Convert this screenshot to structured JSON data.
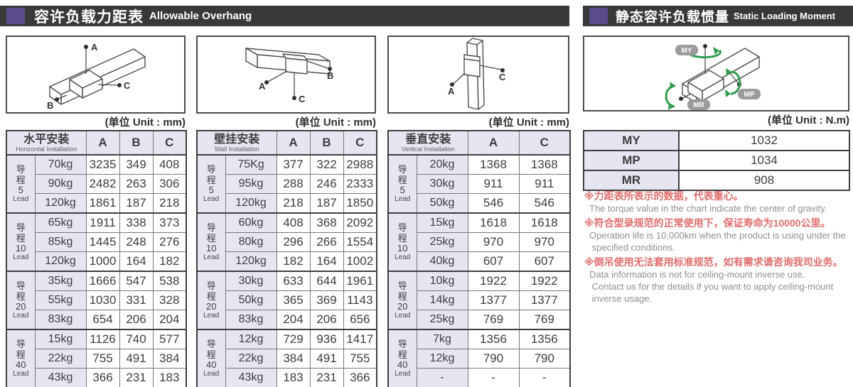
{
  "page": {
    "unit_mm": "(单位 Unit : mm)",
    "unit_nm": "(单位 Unit : N.m)"
  },
  "colors": {
    "accent_purple": "#5b4b8a",
    "bar_dark": "#3a3939",
    "cell_lavender": "#e6e6f2",
    "note_red": "#e06c6c",
    "note_gray": "#8f8f8f",
    "arrow_green": "#2f9e4e",
    "pill_gray": "#9b9b9b"
  },
  "left_section": {
    "title_zh": "容许负载力距表",
    "title_en": "Allowable Overhang",
    "tables": [
      {
        "name_zh": "水平安装",
        "name_en": "Horizontal Installation",
        "columns": [
          "A",
          "B",
          "C"
        ],
        "diagram_points": [
          "A",
          "B",
          "C"
        ],
        "groups": [
          {
            "lead": {
              "zh": "导程",
              "value": "5",
              "en": "Lead"
            },
            "rows": [
              [
                "70kg",
                "3235",
                "349",
                "408"
              ],
              [
                "90kg",
                "2482",
                "263",
                "306"
              ],
              [
                "120kg",
                "1861",
                "187",
                "218"
              ]
            ]
          },
          {
            "lead": {
              "zh": "导程",
              "value": "10",
              "en": "Lead"
            },
            "rows": [
              [
                "65kg",
                "1911",
                "338",
                "373"
              ],
              [
                "85kg",
                "1445",
                "248",
                "276"
              ],
              [
                "120kg",
                "1000",
                "164",
                "182"
              ]
            ]
          },
          {
            "lead": {
              "zh": "导程",
              "value": "20",
              "en": "Lead"
            },
            "rows": [
              [
                "35kg",
                "1666",
                "547",
                "538"
              ],
              [
                "55kg",
                "1030",
                "331",
                "328"
              ],
              [
                "83kg",
                "654",
                "206",
                "204"
              ]
            ]
          },
          {
            "lead": {
              "zh": "导程",
              "value": "40",
              "en": "Lead"
            },
            "rows": [
              [
                "15kg",
                "1126",
                "740",
                "577"
              ],
              [
                "22kg",
                "755",
                "491",
                "384"
              ],
              [
                "43kg",
                "366",
                "231",
                "183"
              ]
            ]
          }
        ]
      },
      {
        "name_zh": "壁挂安装",
        "name_en": "Wall Installation",
        "columns": [
          "A",
          "B",
          "C"
        ],
        "diagram_points": [
          "A",
          "B",
          "C"
        ],
        "groups": [
          {
            "lead": {
              "zh": "导程",
              "value": "5",
              "en": "Lead"
            },
            "rows": [
              [
                "75Kg",
                "377",
                "322",
                "2988"
              ],
              [
                "95kg",
                "288",
                "246",
                "2333"
              ],
              [
                "120kg",
                "218",
                "187",
                "1850"
              ]
            ]
          },
          {
            "lead": {
              "zh": "导程",
              "value": "10",
              "en": "Lead"
            },
            "rows": [
              [
                "60kg",
                "408",
                "368",
                "2092"
              ],
              [
                "80kg",
                "296",
                "266",
                "1554"
              ],
              [
                "120kg",
                "182",
                "164",
                "1002"
              ]
            ]
          },
          {
            "lead": {
              "zh": "导程",
              "value": "20",
              "en": "Lead"
            },
            "rows": [
              [
                "30kg",
                "633",
                "644",
                "1961"
              ],
              [
                "50kg",
                "365",
                "369",
                "1143"
              ],
              [
                "83kg",
                "204",
                "206",
                "656"
              ]
            ]
          },
          {
            "lead": {
              "zh": "导程",
              "value": "40",
              "en": "Lead"
            },
            "rows": [
              [
                "12kg",
                "729",
                "936",
                "1417"
              ],
              [
                "22kg",
                "384",
                "491",
                "755"
              ],
              [
                "43kg",
                "183",
                "231",
                "366"
              ]
            ]
          }
        ]
      },
      {
        "name_zh": "垂直安装",
        "name_en": "Vertical Installation",
        "columns": [
          "A",
          "C"
        ],
        "diagram_points": [
          "A",
          "C"
        ],
        "groups": [
          {
            "lead": {
              "zh": "导程",
              "value": "5",
              "en": "Lead"
            },
            "rows": [
              [
                "20kg",
                "1368",
                "1368"
              ],
              [
                "30kg",
                "911",
                "911"
              ],
              [
                "50kg",
                "546",
                "546"
              ]
            ]
          },
          {
            "lead": {
              "zh": "导程",
              "value": "10",
              "en": "Lead"
            },
            "rows": [
              [
                "15kg",
                "1618",
                "1618"
              ],
              [
                "25kg",
                "970",
                "970"
              ],
              [
                "40kg",
                "607",
                "607"
              ]
            ]
          },
          {
            "lead": {
              "zh": "导程",
              "value": "20",
              "en": "Lead"
            },
            "rows": [
              [
                "10kg",
                "1922",
                "1922"
              ],
              [
                "14kg",
                "1377",
                "1377"
              ],
              [
                "25kg",
                "769",
                "769"
              ]
            ]
          },
          {
            "lead": {
              "zh": "导程",
              "value": "40",
              "en": "Lead"
            },
            "rows": [
              [
                "7kg",
                "1356",
                "1356"
              ],
              [
                "12kg",
                "790",
                "790"
              ],
              [
                "-",
                "-",
                "-"
              ]
            ]
          }
        ]
      }
    ]
  },
  "right_section": {
    "title_zh": "静态容许负载惯量",
    "title_en": "Static Loading Moment",
    "diagram_labels": [
      "MY",
      "MP",
      "MR"
    ],
    "moments": [
      [
        "MY",
        "1032"
      ],
      [
        "MP",
        "1034"
      ],
      [
        "MR",
        "908"
      ]
    ],
    "notes": [
      {
        "zh": "※力距表所表示的数据，代表重心。",
        "en": [
          "The torque value in the chart indicate the center of gravity."
        ]
      },
      {
        "zh": "※符合型录规范的正常使用下，保证寿命为10000公里。",
        "en": [
          "Operation life is 10,000km when the product is using under the",
          " specified conditions."
        ]
      },
      {
        "zh": "※倒吊使用无法套用标准规范，如有需求请咨询我司业务。",
        "en": [
          "Data information is not for ceiling-mount inverse use.",
          " Contact us for the details if you want to apply ceiling-mount",
          " inverse usage."
        ]
      }
    ]
  }
}
